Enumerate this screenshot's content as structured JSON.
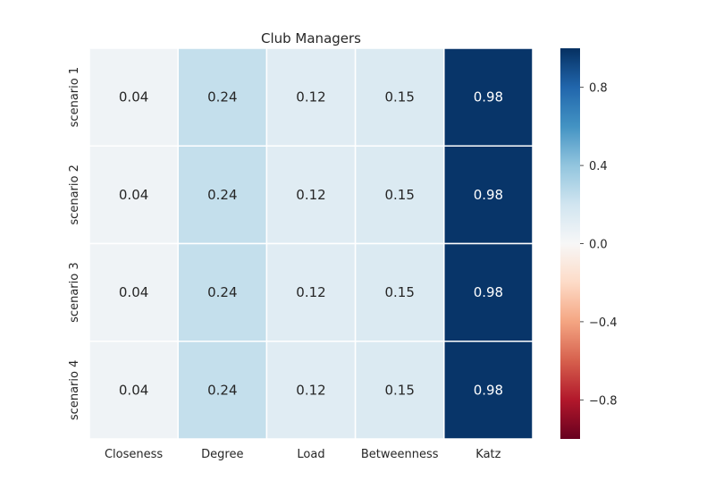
{
  "chart_data": {
    "type": "heatmap",
    "title": "Club Managers",
    "xlabel": "",
    "ylabel": "",
    "columns": [
      "Closeness",
      "Degree",
      "Load",
      "Betweenness",
      "Katz"
    ],
    "rows": [
      "scenario 1",
      "scenario 2",
      "scenario 3",
      "scenario 4"
    ],
    "values": [
      [
        0.04,
        0.24,
        0.12,
        0.15,
        0.98
      ],
      [
        0.04,
        0.24,
        0.12,
        0.15,
        0.98
      ],
      [
        0.04,
        0.24,
        0.12,
        0.15,
        0.98
      ],
      [
        0.04,
        0.24,
        0.12,
        0.15,
        0.98
      ]
    ],
    "annotations": [
      [
        "0.04",
        "0.24",
        "0.12",
        "0.15",
        "0.98"
      ],
      [
        "0.04",
        "0.24",
        "0.12",
        "0.15",
        "0.98"
      ],
      [
        "0.04",
        "0.24",
        "0.12",
        "0.15",
        "0.98"
      ],
      [
        "0.04",
        "0.24",
        "0.12",
        "0.15",
        "0.98"
      ]
    ],
    "colormap": "RdBu",
    "vmin": -1.0,
    "vmax": 1.0,
    "colorbar": {
      "ticks": [
        0.8,
        0.4,
        0.0,
        -0.4,
        -0.8
      ],
      "tick_labels": [
        "0.8",
        "0.4",
        "0.0",
        "−0.4",
        "−0.8"
      ],
      "placement": "right"
    },
    "grid": false,
    "cell_separator_color": "#ffffff",
    "colors": {
      "low": "#67001f",
      "mid": "#f7f7f7",
      "high": "#053061",
      "text_dark": "#262626",
      "text_light": "#ffffff"
    }
  }
}
